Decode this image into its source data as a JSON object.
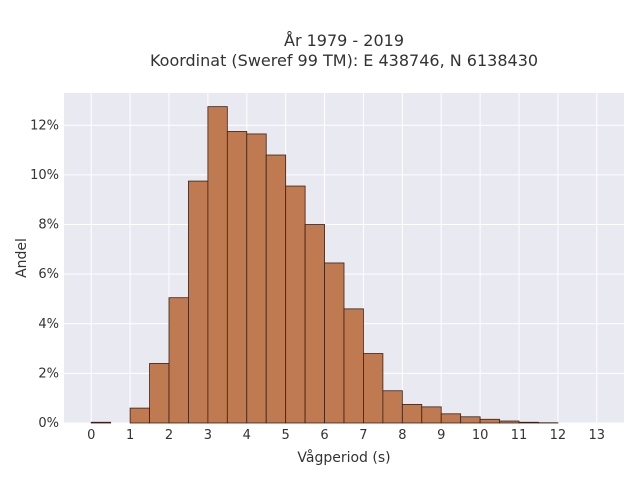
{
  "chart_data": {
    "type": "bar",
    "title_line1": "År 1979 - 2019",
    "title_line2": "Koordinat (Sweref 99 TM): E 438746, N 6138430",
    "xlabel": "Vågperiod (s)",
    "ylabel": "Andel",
    "xlim": [
      -0.7,
      13.7
    ],
    "ylim": [
      0,
      0.133
    ],
    "bin_width": 0.5,
    "bins_start": [
      0,
      1,
      1.5,
      2,
      2.5,
      3,
      3.5,
      4,
      4.5,
      5,
      5.5,
      6,
      6.5,
      7,
      7.5,
      8,
      8.5,
      9,
      9.5,
      10,
      10.5,
      11,
      11.5
    ],
    "values": [
      0.0003,
      0.006,
      0.024,
      0.0505,
      0.0975,
      0.1275,
      0.1175,
      0.1165,
      0.108,
      0.0955,
      0.08,
      0.0645,
      0.046,
      0.028,
      0.013,
      0.0075,
      0.0065,
      0.0037,
      0.0025,
      0.0015,
      0.0008,
      0.0003,
      0.0001
    ],
    "x_ticks": [
      0,
      1,
      2,
      3,
      4,
      5,
      6,
      7,
      8,
      9,
      10,
      11,
      12,
      13
    ],
    "x_tick_labels": [
      "0",
      "1",
      "2",
      "3",
      "4",
      "5",
      "6",
      "7",
      "8",
      "9",
      "10",
      "11",
      "12",
      "13"
    ],
    "y_ticks": [
      0,
      0.02,
      0.04,
      0.06,
      0.08,
      0.1,
      0.12
    ],
    "y_tick_labels": [
      "0%",
      "2%",
      "4%",
      "6%",
      "8%",
      "10%",
      "12%"
    ],
    "grid": true,
    "colors": {
      "bar_fill": "#c07a52",
      "bar_stroke": "#3a2014",
      "plot_bg": "#e9e9f1",
      "grid": "#ffffff"
    }
  }
}
